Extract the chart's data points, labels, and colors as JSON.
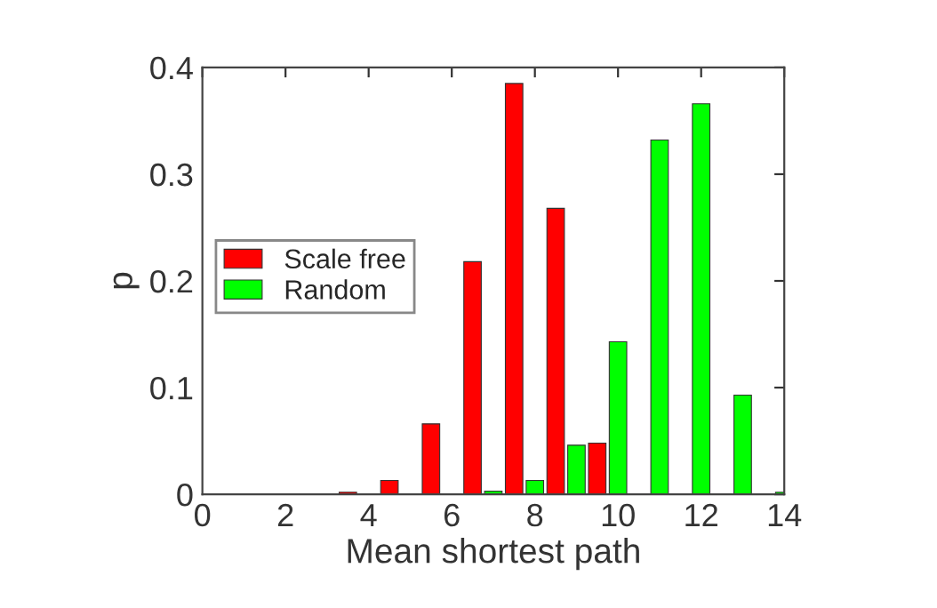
{
  "chart_data": {
    "type": "bar",
    "xlabel": "Mean shortest path",
    "ylabel": "p",
    "series": [
      {
        "name": "Scale free",
        "color": "#ff0000",
        "x": [
          3.5,
          4.5,
          5.5,
          6.5,
          7.5,
          8.5,
          9.5
        ],
        "values": [
          0.002,
          0.013,
          0.066,
          0.218,
          0.385,
          0.268,
          0.048
        ]
      },
      {
        "name": "Random",
        "color": "#00ff00",
        "x": [
          7,
          8,
          9,
          10,
          11,
          12,
          13,
          14
        ],
        "values": [
          0.003,
          0.013,
          0.046,
          0.143,
          0.332,
          0.366,
          0.093,
          0.002
        ]
      }
    ],
    "xlim": [
      0,
      14
    ],
    "xticks": [
      0,
      2,
      4,
      6,
      8,
      10,
      12,
      14
    ],
    "ylim": [
      0,
      0.4
    ],
    "yticks": [
      0,
      0.1,
      0.2,
      0.3,
      0.4
    ],
    "grid": false,
    "legend": "left"
  }
}
